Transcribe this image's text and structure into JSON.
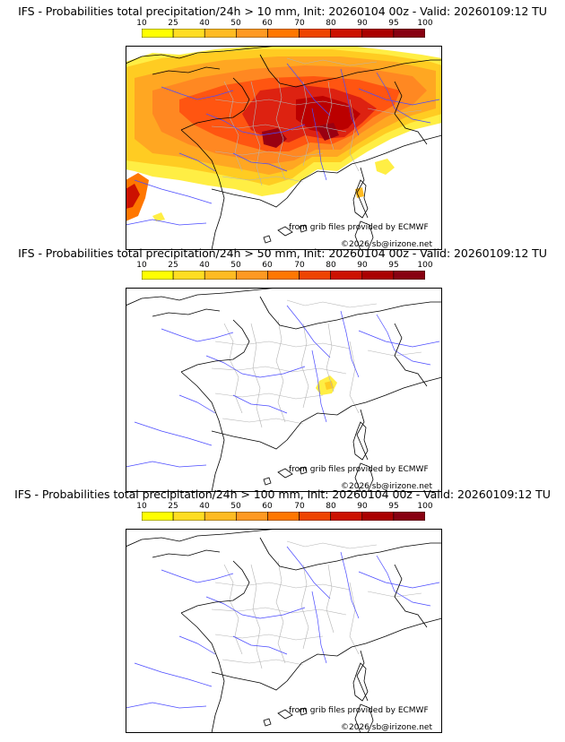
{
  "colorscale": {
    "thresholds": [
      "10",
      "25",
      "40",
      "50",
      "60",
      "70",
      "80",
      "90",
      "95",
      "100"
    ],
    "colors": [
      "#ffff00",
      "#ffdd22",
      "#ffbb22",
      "#ff9922",
      "#ff7700",
      "#ee4400",
      "#cc1100",
      "#aa0000",
      "#880011",
      "#550000"
    ]
  },
  "panels": [
    {
      "title": "IFS - Probabilities total precipitation/24h > 10 mm, Init: 20260104 00z - Valid: 20260109:12 TU",
      "source": "from grib files provided by ECMWF",
      "copyright": "©2026 sb@irizone.net"
    },
    {
      "title": "IFS - Probabilities total precipitation/24h > 50 mm, Init: 20260104 00z - Valid: 20260109:12 TU",
      "source": "from grib files provided by ECMWF",
      "copyright": "©2026 sb@irizone.net"
    },
    {
      "title": "IFS - Probabilities total precipitation/24h > 100 mm, Init: 20260104 00z - Valid: 20260109:12 TU",
      "source": "from grib files provided by ECMWF",
      "copyright": "©2026 sb@irizone.net"
    }
  ]
}
